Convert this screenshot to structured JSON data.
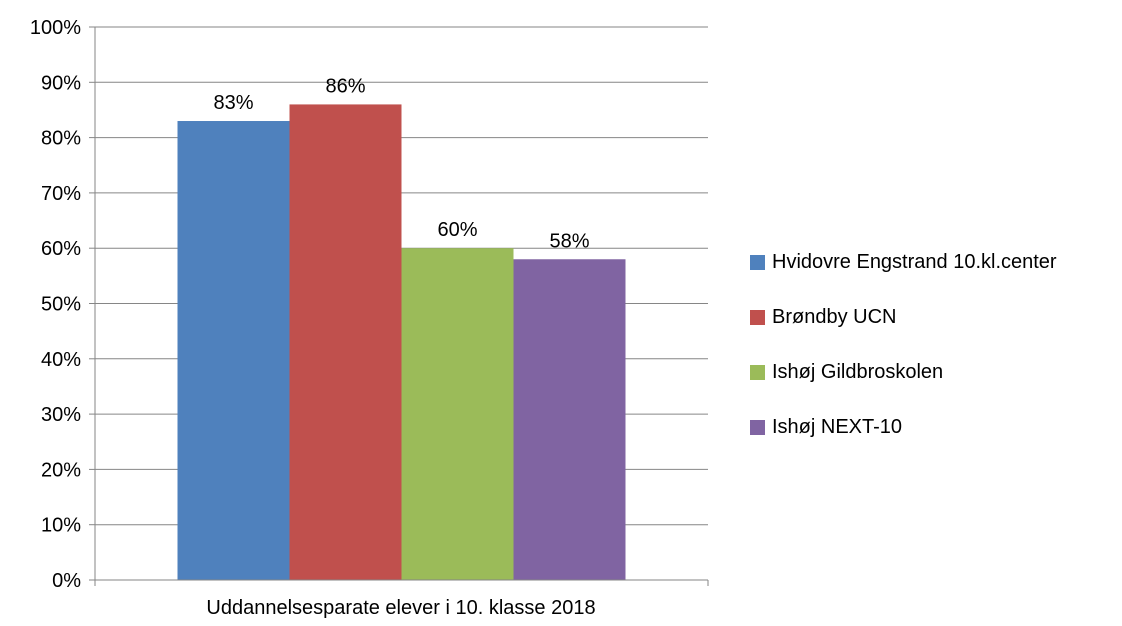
{
  "chart_data": {
    "type": "bar",
    "title": "",
    "xlabel": "",
    "ylabel": "",
    "categories": [
      "Uddannelsesparate elever i 10. klasse 2018"
    ],
    "series": [
      {
        "name": "Hvidovre Engstrand 10.kl.center",
        "values": [
          83
        ],
        "label": "83%",
        "color": "#4F81BD"
      },
      {
        "name": "Brøndby UCN",
        "values": [
          86
        ],
        "label": "86%",
        "color": "#C0504D"
      },
      {
        "name": "Ishøj Gildbroskolen",
        "values": [
          60
        ],
        "label": "60%",
        "color": "#9BBB59"
      },
      {
        "name": "Ishøj NEXT-10",
        "values": [
          58
        ],
        "label": "58%",
        "color": "#8064A2"
      }
    ],
    "ylim": [
      0,
      100
    ],
    "yticks": [
      0,
      10,
      20,
      30,
      40,
      50,
      60,
      70,
      80,
      90,
      100
    ],
    "ytick_labels": [
      "0%",
      "10%",
      "20%",
      "30%",
      "40%",
      "50%",
      "60%",
      "70%",
      "80%",
      "90%",
      "100%"
    ],
    "grid": true,
    "legend": "right",
    "axis_color": "#868686",
    "grid_color": "#868686"
  }
}
